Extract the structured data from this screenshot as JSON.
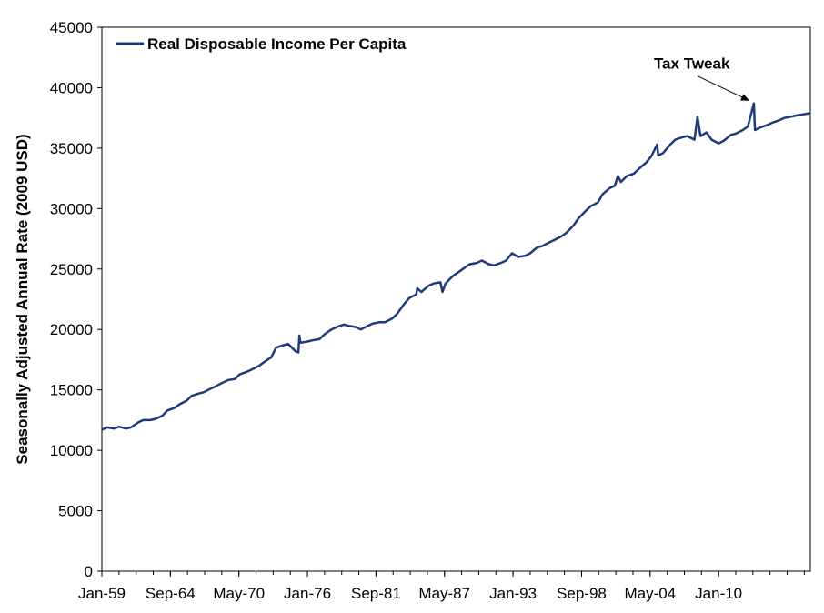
{
  "chart_data": {
    "type": "line",
    "title": "",
    "xlabel": "",
    "ylabel": "Seasonally Adjusted Annual Rate (2009 USD)",
    "ylim": [
      0,
      45000
    ],
    "y_ticks": [
      0,
      5000,
      10000,
      15000,
      20000,
      25000,
      30000,
      35000,
      40000,
      45000
    ],
    "x_range": [
      "1959-01",
      "2017-08"
    ],
    "x_tick_labels": [
      "Jan-59",
      "Sep-64",
      "May-70",
      "Jan-76",
      "Sep-81",
      "May-87",
      "Jan-93",
      "Sep-98",
      "May-04",
      "Jan-10"
    ],
    "grid": false,
    "legend_position": "top-left",
    "series_color": "#1F3A7A",
    "series": [
      {
        "name": "Real Disposable Income Per Capita",
        "points": [
          [
            "1959-01",
            11700
          ],
          [
            "1959-06",
            11900
          ],
          [
            "1960-01",
            11800
          ],
          [
            "1960-06",
            11950
          ],
          [
            "1961-01",
            11800
          ],
          [
            "1961-06",
            11900
          ],
          [
            "1962-01",
            12300
          ],
          [
            "1962-06",
            12500
          ],
          [
            "1963-01",
            12500
          ],
          [
            "1963-06",
            12600
          ],
          [
            "1964-01",
            12850
          ],
          [
            "1964-06",
            13300
          ],
          [
            "1965-01",
            13500
          ],
          [
            "1965-06",
            13800
          ],
          [
            "1966-01",
            14100
          ],
          [
            "1966-06",
            14500
          ],
          [
            "1967-01",
            14700
          ],
          [
            "1967-06",
            14800
          ],
          [
            "1968-01",
            15100
          ],
          [
            "1968-06",
            15300
          ],
          [
            "1969-01",
            15600
          ],
          [
            "1969-06",
            15800
          ],
          [
            "1970-01",
            15900
          ],
          [
            "1970-06",
            16300
          ],
          [
            "1971-01",
            16500
          ],
          [
            "1971-06",
            16700
          ],
          [
            "1972-01",
            17000
          ],
          [
            "1972-06",
            17300
          ],
          [
            "1973-01",
            17700
          ],
          [
            "1973-06",
            18500
          ],
          [
            "1974-01",
            18700
          ],
          [
            "1974-06",
            18800
          ],
          [
            "1975-01",
            18200
          ],
          [
            "1975-04",
            18100
          ],
          [
            "1975-05",
            19500
          ],
          [
            "1975-06",
            18900
          ],
          [
            "1976-01",
            19000
          ],
          [
            "1976-06",
            19100
          ],
          [
            "1977-01",
            19200
          ],
          [
            "1977-06",
            19600
          ],
          [
            "1978-01",
            20000
          ],
          [
            "1978-06",
            20200
          ],
          [
            "1979-01",
            20400
          ],
          [
            "1979-06",
            20300
          ],
          [
            "1980-01",
            20200
          ],
          [
            "1980-06",
            20000
          ],
          [
            "1981-01",
            20300
          ],
          [
            "1981-06",
            20500
          ],
          [
            "1982-01",
            20600
          ],
          [
            "1982-06",
            20600
          ],
          [
            "1983-01",
            20900
          ],
          [
            "1983-06",
            21300
          ],
          [
            "1984-01",
            22100
          ],
          [
            "1984-06",
            22600
          ],
          [
            "1985-01",
            22900
          ],
          [
            "1985-02",
            23400
          ],
          [
            "1985-06",
            23100
          ],
          [
            "1986-01",
            23600
          ],
          [
            "1986-06",
            23800
          ],
          [
            "1987-01",
            23900
          ],
          [
            "1987-03",
            23100
          ],
          [
            "1987-06",
            23800
          ],
          [
            "1988-01",
            24400
          ],
          [
            "1988-06",
            24700
          ],
          [
            "1989-01",
            25100
          ],
          [
            "1989-06",
            25400
          ],
          [
            "1990-01",
            25500
          ],
          [
            "1990-06",
            25700
          ],
          [
            "1991-01",
            25400
          ],
          [
            "1991-06",
            25300
          ],
          [
            "1992-01",
            25500
          ],
          [
            "1992-06",
            25700
          ],
          [
            "1992-12",
            26300
          ],
          [
            "1993-06",
            26000
          ],
          [
            "1994-01",
            26100
          ],
          [
            "1994-06",
            26300
          ],
          [
            "1995-01",
            26800
          ],
          [
            "1995-06",
            26900
          ],
          [
            "1996-01",
            27200
          ],
          [
            "1996-06",
            27400
          ],
          [
            "1997-01",
            27700
          ],
          [
            "1997-06",
            28000
          ],
          [
            "1998-01",
            28600
          ],
          [
            "1998-06",
            29200
          ],
          [
            "1999-01",
            29800
          ],
          [
            "1999-06",
            30200
          ],
          [
            "2000-01",
            30500
          ],
          [
            "2000-06",
            31200
          ],
          [
            "2001-01",
            31700
          ],
          [
            "2001-06",
            31900
          ],
          [
            "2001-09",
            32700
          ],
          [
            "2001-12",
            32200
          ],
          [
            "2002-06",
            32700
          ],
          [
            "2003-01",
            32900
          ],
          [
            "2003-06",
            33300
          ],
          [
            "2004-01",
            33800
          ],
          [
            "2004-06",
            34300
          ],
          [
            "2004-12",
            35300
          ],
          [
            "2005-01",
            34400
          ],
          [
            "2005-06",
            34600
          ],
          [
            "2006-01",
            35300
          ],
          [
            "2006-06",
            35700
          ],
          [
            "2007-01",
            35900
          ],
          [
            "2007-06",
            36000
          ],
          [
            "2008-01",
            35700
          ],
          [
            "2008-04",
            37600
          ],
          [
            "2008-07",
            36000
          ],
          [
            "2009-01",
            36300
          ],
          [
            "2009-06",
            35700
          ],
          [
            "2010-01",
            35400
          ],
          [
            "2010-06",
            35600
          ],
          [
            "2011-01",
            36100
          ],
          [
            "2011-06",
            36200
          ],
          [
            "2012-01",
            36500
          ],
          [
            "2012-06",
            36800
          ],
          [
            "2012-12",
            38700
          ],
          [
            "2013-01",
            36500
          ],
          [
            "2013-06",
            36700
          ],
          [
            "2014-01",
            36900
          ],
          [
            "2014-06",
            37100
          ],
          [
            "2015-01",
            37300
          ],
          [
            "2015-06",
            37500
          ],
          [
            "2016-01",
            37600
          ],
          [
            "2016-06",
            37700
          ],
          [
            "2017-01",
            37800
          ],
          [
            "2017-08",
            37900
          ]
        ]
      }
    ],
    "annotations": [
      {
        "text": "Tax Tweak",
        "target": [
          "2012-12",
          38700
        ]
      }
    ]
  }
}
